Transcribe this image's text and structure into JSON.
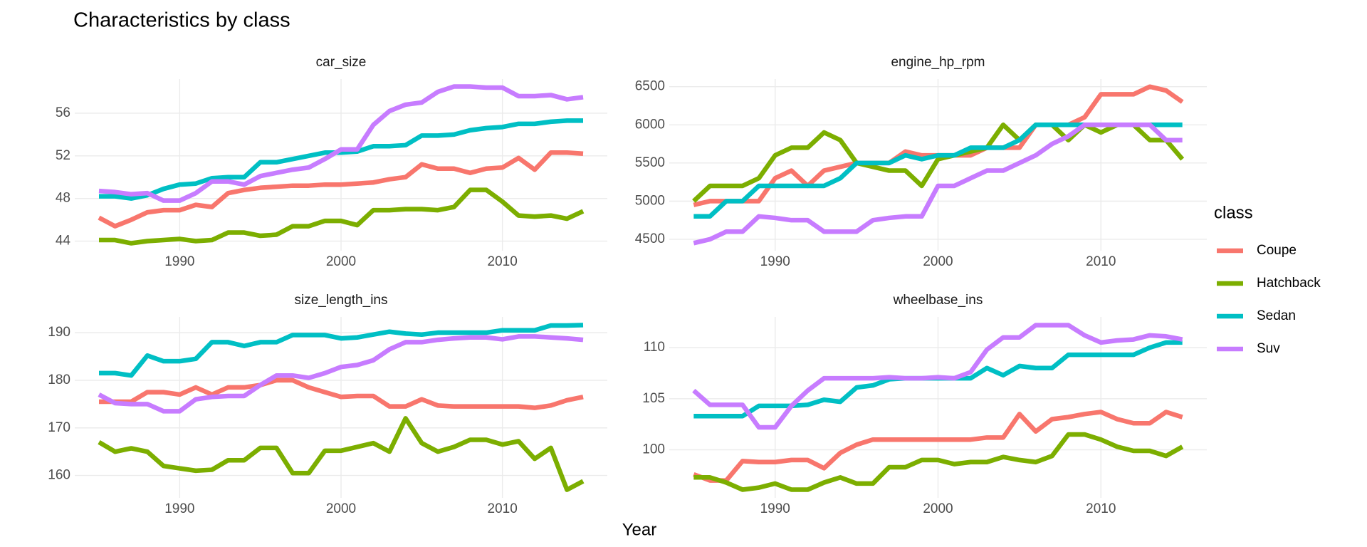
{
  "title": "Characteristics by class",
  "x_label": "Year",
  "legend_title": "class",
  "chart_data": [
    {
      "type": "line",
      "title": "car_size",
      "x": [
        1985,
        1986,
        1987,
        1988,
        1989,
        1990,
        1991,
        1992,
        1993,
        1994,
        1995,
        1996,
        1997,
        1998,
        1999,
        2000,
        2001,
        2002,
        2003,
        2004,
        2005,
        2006,
        2007,
        2008,
        2009,
        2010,
        2011,
        2012,
        2013,
        2014,
        2015
      ],
      "xlim": [
        1983.5,
        2016.5
      ],
      "xticks": [
        1990,
        2000,
        2010
      ],
      "ylim": [
        43.1,
        59.2
      ],
      "yticks": [
        44,
        48,
        52,
        56
      ],
      "grid": true,
      "series": [
        {
          "name": "Coupe",
          "color": "#f8766d",
          "values": [
            46.2,
            45.4,
            46.0,
            46.7,
            46.9,
            46.9,
            47.4,
            47.2,
            48.5,
            48.8,
            49.0,
            49.1,
            49.2,
            49.2,
            49.3,
            49.3,
            49.4,
            49.5,
            49.8,
            50.0,
            51.2,
            50.8,
            50.8,
            50.4,
            50.8,
            50.9,
            51.8,
            50.7,
            52.3,
            52.3,
            52.2
          ]
        },
        {
          "name": "Hatchback",
          "color": "#7cae00",
          "values": [
            44.1,
            44.1,
            43.8,
            44.0,
            44.1,
            44.2,
            44.0,
            44.1,
            44.8,
            44.8,
            44.5,
            44.6,
            45.4,
            45.4,
            45.9,
            45.9,
            45.5,
            46.9,
            46.9,
            47.0,
            47.0,
            46.9,
            47.2,
            48.8,
            48.8,
            47.7,
            46.4,
            46.3,
            46.4,
            46.1,
            46.8
          ]
        },
        {
          "name": "Sedan",
          "color": "#00bfc4",
          "values": [
            48.2,
            48.2,
            48.0,
            48.3,
            48.9,
            49.3,
            49.4,
            49.9,
            50.0,
            50.0,
            51.4,
            51.4,
            51.7,
            52.0,
            52.3,
            52.3,
            52.4,
            52.9,
            52.9,
            53.0,
            53.9,
            53.9,
            54.0,
            54.4,
            54.6,
            54.7,
            55.0,
            55.0,
            55.2,
            55.3,
            55.3
          ]
        },
        {
          "name": "Suv",
          "color": "#c77cff",
          "values": [
            48.7,
            48.6,
            48.4,
            48.5,
            47.8,
            47.8,
            48.5,
            49.6,
            49.6,
            49.3,
            50.1,
            50.4,
            50.7,
            50.9,
            51.7,
            52.6,
            52.6,
            54.9,
            56.2,
            56.8,
            57.0,
            58.0,
            58.5,
            58.5,
            58.4,
            58.4,
            57.6,
            57.6,
            57.7,
            57.3,
            57.5
          ]
        }
      ]
    },
    {
      "type": "line",
      "title": "engine_hp_rpm",
      "x": [
        1985,
        1986,
        1987,
        1988,
        1989,
        1990,
        1991,
        1992,
        1993,
        1994,
        1995,
        1996,
        1997,
        1998,
        1999,
        2000,
        2001,
        2002,
        2003,
        2004,
        2005,
        2006,
        2007,
        2008,
        2009,
        2010,
        2011,
        2012,
        2013,
        2014,
        2015
      ],
      "xlim": [
        1983.5,
        2016.5
      ],
      "xticks": [
        1990,
        2000,
        2010
      ],
      "ylim": [
        4350,
        6600
      ],
      "yticks": [
        4500,
        5000,
        5500,
        6000,
        6500
      ],
      "grid": true,
      "series": [
        {
          "name": "Coupe",
          "color": "#f8766d",
          "values": [
            4950,
            5000,
            5000,
            5000,
            5000,
            5300,
            5400,
            5200,
            5400,
            5450,
            5500,
            5500,
            5500,
            5650,
            5600,
            5600,
            5600,
            5600,
            5700,
            5700,
            5700,
            6000,
            6000,
            6000,
            6100,
            6400,
            6400,
            6400,
            6500,
            6450,
            6300
          ]
        },
        {
          "name": "Hatchback",
          "color": "#7cae00",
          "values": [
            5000,
            5200,
            5200,
            5200,
            5300,
            5600,
            5700,
            5700,
            5900,
            5800,
            5500,
            5450,
            5400,
            5400,
            5200,
            5550,
            5600,
            5650,
            5700,
            6000,
            5800,
            6000,
            6000,
            5800,
            6000,
            5900,
            6000,
            6000,
            5800,
            5800,
            5550
          ]
        },
        {
          "name": "Sedan",
          "color": "#00bfc4",
          "values": [
            4800,
            4800,
            5000,
            5000,
            5200,
            5200,
            5200,
            5200,
            5200,
            5300,
            5500,
            5500,
            5500,
            5600,
            5550,
            5600,
            5600,
            5700,
            5700,
            5700,
            5800,
            6000,
            6000,
            6000,
            6000,
            6000,
            6000,
            6000,
            6000,
            6000,
            6000
          ]
        },
        {
          "name": "Suv",
          "color": "#c77cff",
          "values": [
            4450,
            4500,
            4600,
            4600,
            4800,
            4780,
            4750,
            4750,
            4600,
            4600,
            4600,
            4750,
            4780,
            4800,
            4800,
            5200,
            5200,
            5300,
            5400,
            5400,
            5500,
            5600,
            5750,
            5850,
            6000,
            6000,
            6000,
            6000,
            6000,
            5800,
            5800
          ]
        }
      ]
    },
    {
      "type": "line",
      "title": "size_length_ins",
      "x": [
        1985,
        1986,
        1987,
        1988,
        1989,
        1990,
        1991,
        1992,
        1993,
        1994,
        1995,
        1996,
        1997,
        1998,
        1999,
        2000,
        2001,
        2002,
        2003,
        2004,
        2005,
        2006,
        2007,
        2008,
        2009,
        2010,
        2011,
        2012,
        2013,
        2014,
        2015
      ],
      "xlim": [
        1983.5,
        2016.5
      ],
      "xticks": [
        1990,
        2000,
        2010
      ],
      "ylim": [
        155.3,
        193.3
      ],
      "yticks": [
        160,
        170,
        180,
        190
      ],
      "grid": true,
      "series": [
        {
          "name": "Coupe",
          "color": "#f8766d",
          "values": [
            175.5,
            175.5,
            175.5,
            177.5,
            177.5,
            177,
            178.5,
            177,
            178.5,
            178.5,
            179,
            180,
            180,
            178.5,
            177.5,
            176.5,
            176.7,
            176.7,
            174.5,
            174.5,
            176,
            174.7,
            174.5,
            174.5,
            174.5,
            174.5,
            174.5,
            174.2,
            174.7,
            175.8,
            176.5
          ]
        },
        {
          "name": "Hatchback",
          "color": "#7cae00",
          "values": [
            167,
            165,
            165.7,
            165,
            162,
            161.5,
            161,
            161.2,
            163.2,
            163.2,
            165.8,
            165.8,
            160.5,
            160.5,
            165.2,
            165.2,
            166,
            166.8,
            165,
            172,
            166.8,
            165,
            166,
            167.5,
            167.5,
            166.5,
            167.2,
            163.5,
            165.8,
            157,
            158.8
          ]
        },
        {
          "name": "Sedan",
          "color": "#00bfc4",
          "values": [
            181.5,
            181.5,
            181,
            185.2,
            184,
            184,
            184.5,
            188,
            188,
            187.2,
            188,
            188,
            189.5,
            189.5,
            189.5,
            188.8,
            189,
            189.6,
            190.2,
            189.8,
            189.6,
            190,
            190,
            190,
            190,
            190.5,
            190.5,
            190.5,
            191.5,
            191.5,
            191.6
          ]
        },
        {
          "name": "Suv",
          "color": "#c77cff",
          "values": [
            177,
            175.2,
            175,
            175,
            173.5,
            173.5,
            176,
            176.5,
            176.7,
            176.7,
            179,
            181,
            181,
            180.5,
            181.5,
            182.8,
            183.2,
            184.2,
            186.5,
            188,
            188,
            188.5,
            188.8,
            189,
            189,
            188.6,
            189.2,
            189.2,
            189,
            188.8,
            188.5
          ]
        }
      ]
    },
    {
      "type": "line",
      "title": "wheelbase_ins",
      "x": [
        1985,
        1986,
        1987,
        1988,
        1989,
        1990,
        1991,
        1992,
        1993,
        1994,
        1995,
        1996,
        1997,
        1998,
        1999,
        2000,
        2001,
        2002,
        2003,
        2004,
        2005,
        2006,
        2007,
        2008,
        2009,
        2010,
        2011,
        2012,
        2013,
        2014,
        2015
      ],
      "xlim": [
        1983.5,
        2016.5
      ],
      "xticks": [
        1990,
        2000,
        2010
      ],
      "ylim": [
        95.3,
        113.0
      ],
      "yticks": [
        100,
        105,
        110
      ],
      "grid": true,
      "series": [
        {
          "name": "Coupe",
          "color": "#f8766d",
          "values": [
            97.6,
            97,
            97,
            98.9,
            98.8,
            98.8,
            99,
            99,
            98.2,
            99.7,
            100.5,
            101,
            101,
            101,
            101,
            101,
            101,
            101,
            101.2,
            101.2,
            103.5,
            101.8,
            103,
            103.2,
            103.5,
            103.7,
            103,
            102.6,
            102.6,
            103.7,
            103.2
          ]
        },
        {
          "name": "Hatchback",
          "color": "#7cae00",
          "values": [
            97.3,
            97.3,
            96.8,
            96.1,
            96.3,
            96.7,
            96.1,
            96.1,
            96.8,
            97.3,
            96.7,
            96.7,
            98.3,
            98.3,
            99,
            99,
            98.6,
            98.8,
            98.8,
            99.3,
            99,
            98.8,
            99.4,
            101.5,
            101.5,
            101,
            100.3,
            99.9,
            99.9,
            99.4,
            100.3
          ]
        },
        {
          "name": "Sedan",
          "color": "#00bfc4",
          "values": [
            103.3,
            103.3,
            103.3,
            103.3,
            104.3,
            104.3,
            104.3,
            104.4,
            104.9,
            104.7,
            106.1,
            106.3,
            106.9,
            107,
            107,
            107,
            107,
            107,
            108,
            107.3,
            108.2,
            108,
            108,
            109.3,
            109.3,
            109.3,
            109.3,
            109.3,
            110,
            110.5,
            110.5
          ]
        },
        {
          "name": "Suv",
          "color": "#c77cff",
          "values": [
            105.8,
            104.4,
            104.4,
            104.4,
            102.2,
            102.2,
            104.3,
            105.8,
            107,
            107,
            107,
            107,
            107.1,
            107,
            107,
            107.1,
            107,
            107.6,
            109.8,
            111,
            111,
            112.2,
            112.2,
            112.2,
            111.2,
            110.5,
            110.7,
            110.8,
            111.2,
            111.1,
            110.8
          ]
        }
      ]
    }
  ]
}
